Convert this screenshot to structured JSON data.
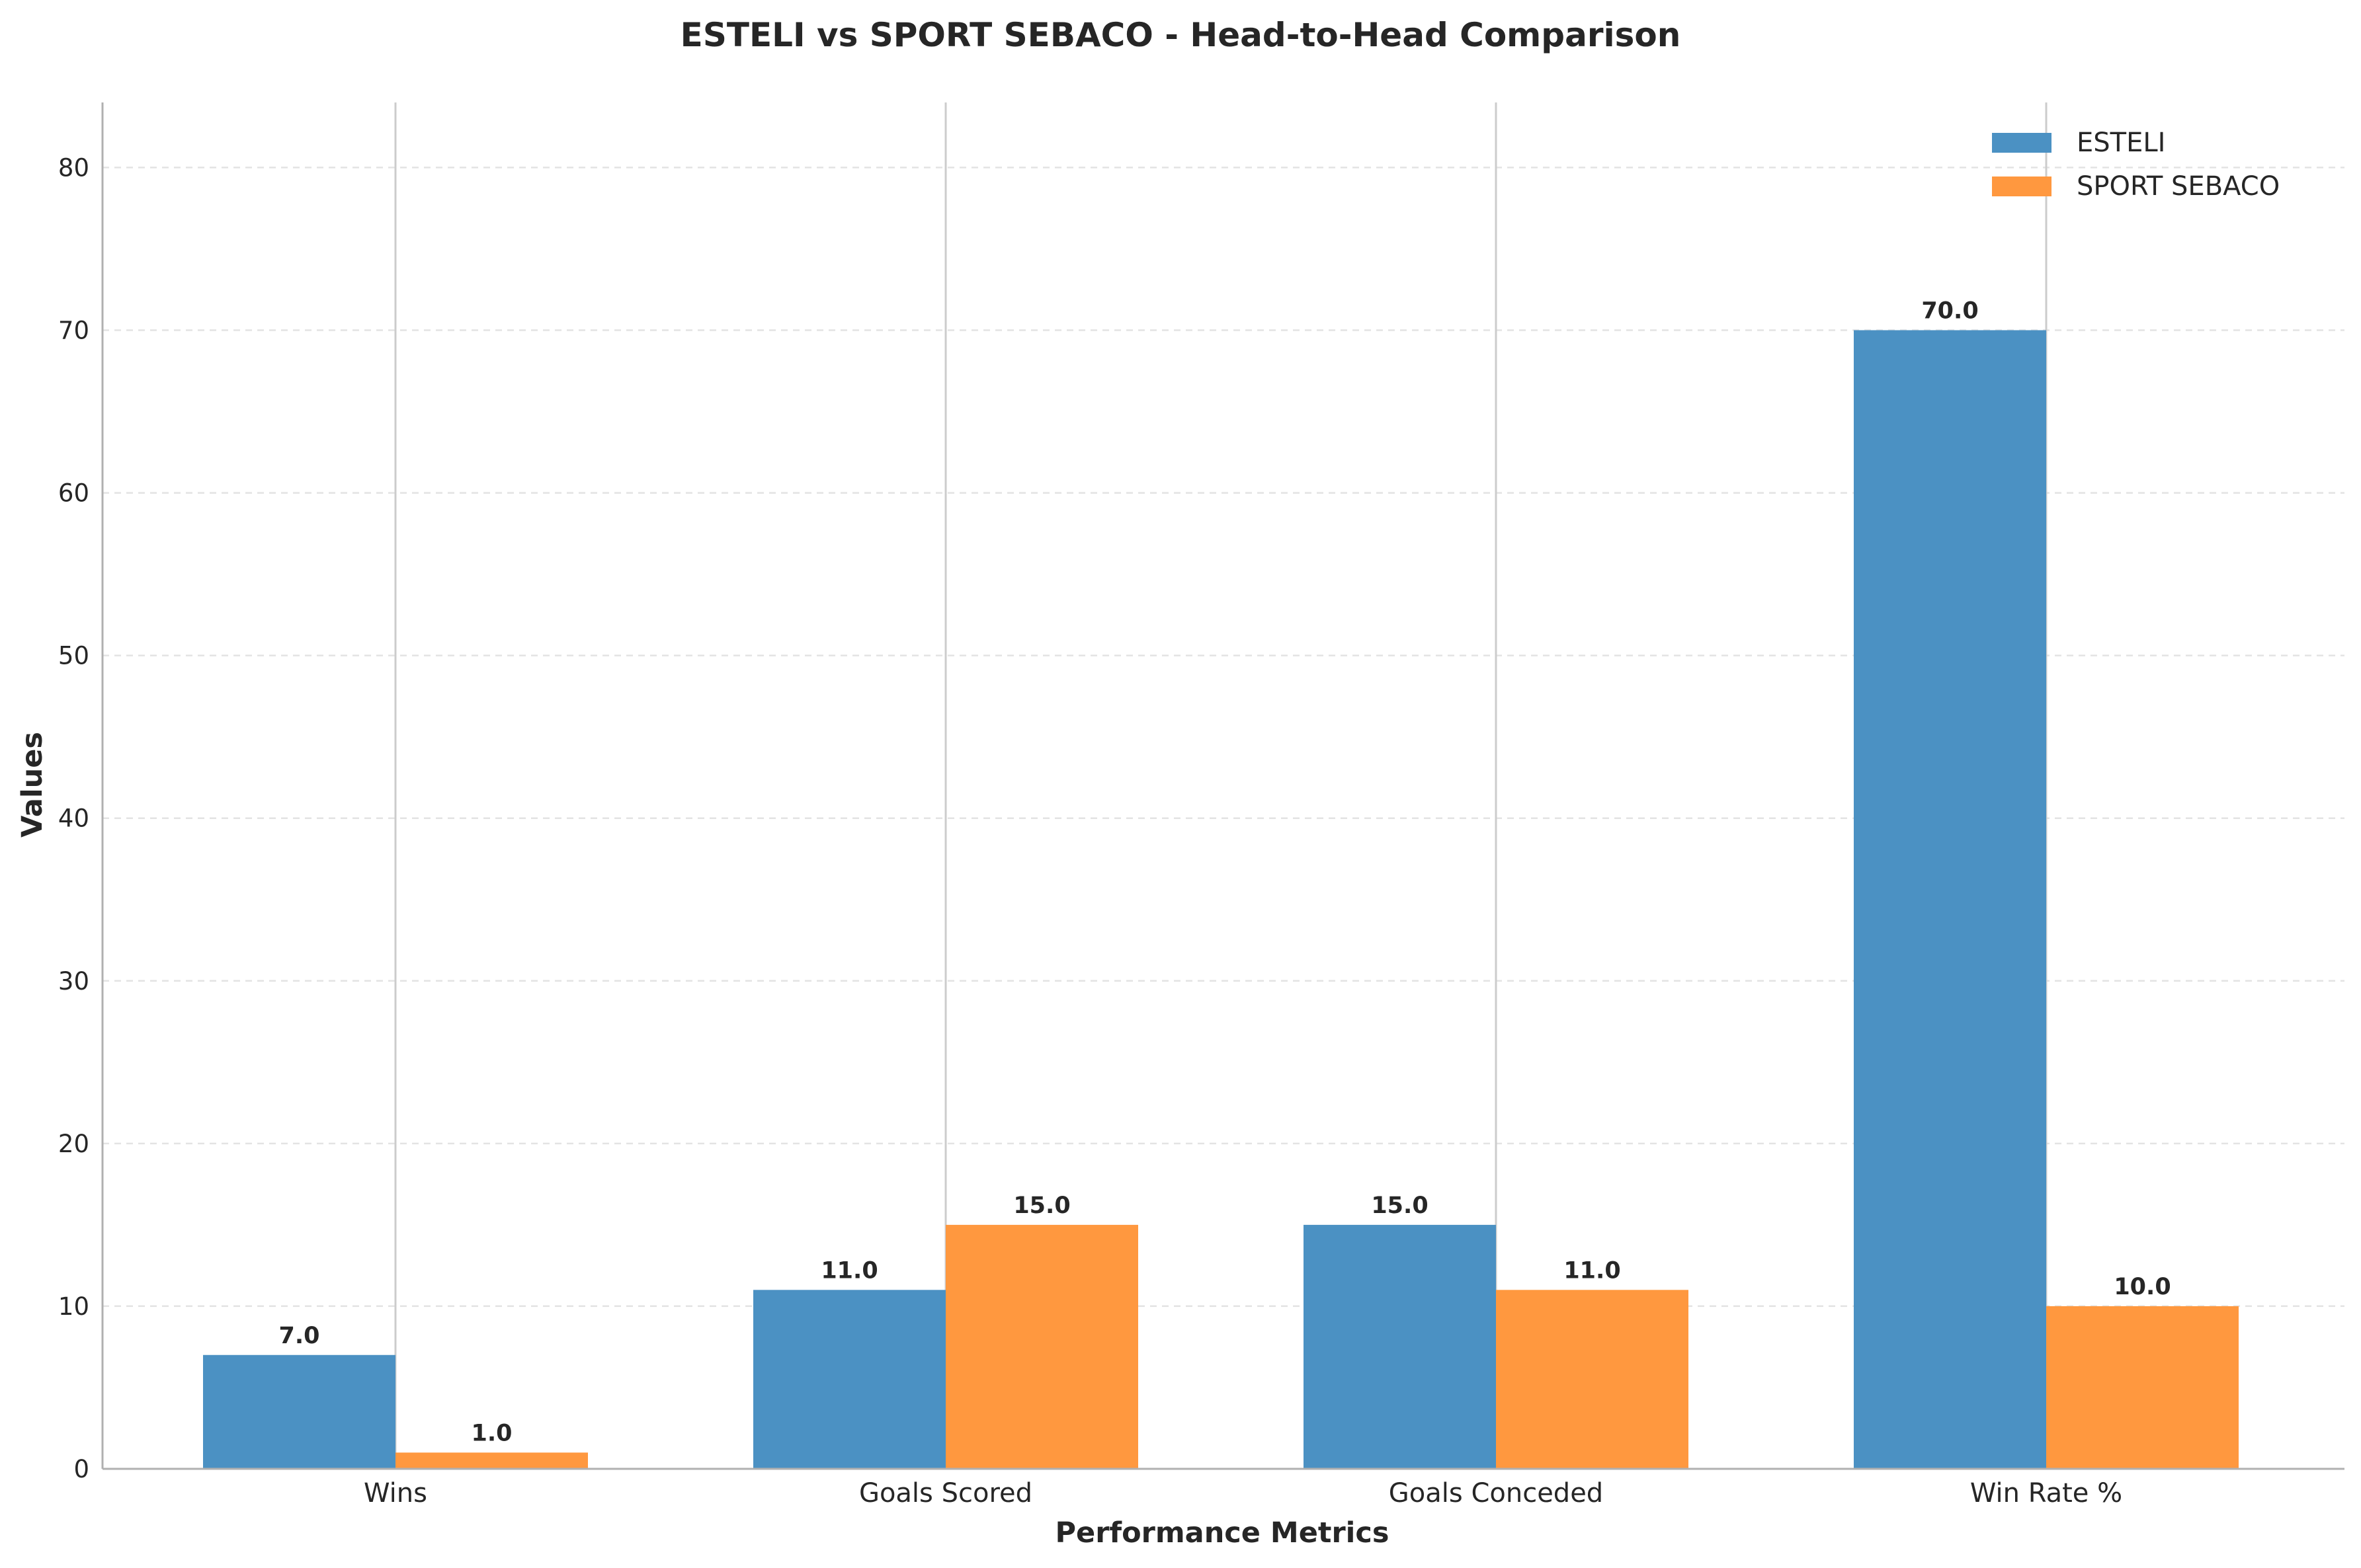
{
  "chart_data": {
    "type": "bar",
    "title": "ESTELI vs SPORT SEBACO - Head-to-Head Comparison",
    "xlabel": "Performance Metrics",
    "ylabel": "Values",
    "categories": [
      "Wins",
      "Goals Scored",
      "Goals Conceded",
      "Win Rate %"
    ],
    "series": [
      {
        "name": "ESTELI",
        "values": [
          7.0,
          11.0,
          15.0,
          70.0
        ],
        "color": "#4b91c3",
        "labels": [
          "7.0",
          "11.0",
          "15.0",
          "70.0"
        ]
      },
      {
        "name": "SPORT SEBACO",
        "values": [
          1.0,
          15.0,
          11.0,
          10.0
        ],
        "color": "#ff983f",
        "labels": [
          "1.0",
          "15.0",
          "11.0",
          "10.0"
        ]
      }
    ],
    "ylim": [
      0,
      84
    ],
    "yticks": [
      0,
      10,
      20,
      30,
      40,
      50,
      60,
      70,
      80
    ],
    "ytick_labels": [
      "0",
      "10",
      "20",
      "30",
      "40",
      "50",
      "60",
      "70",
      "80"
    ],
    "grid": true,
    "legend_position": "top-right"
  }
}
